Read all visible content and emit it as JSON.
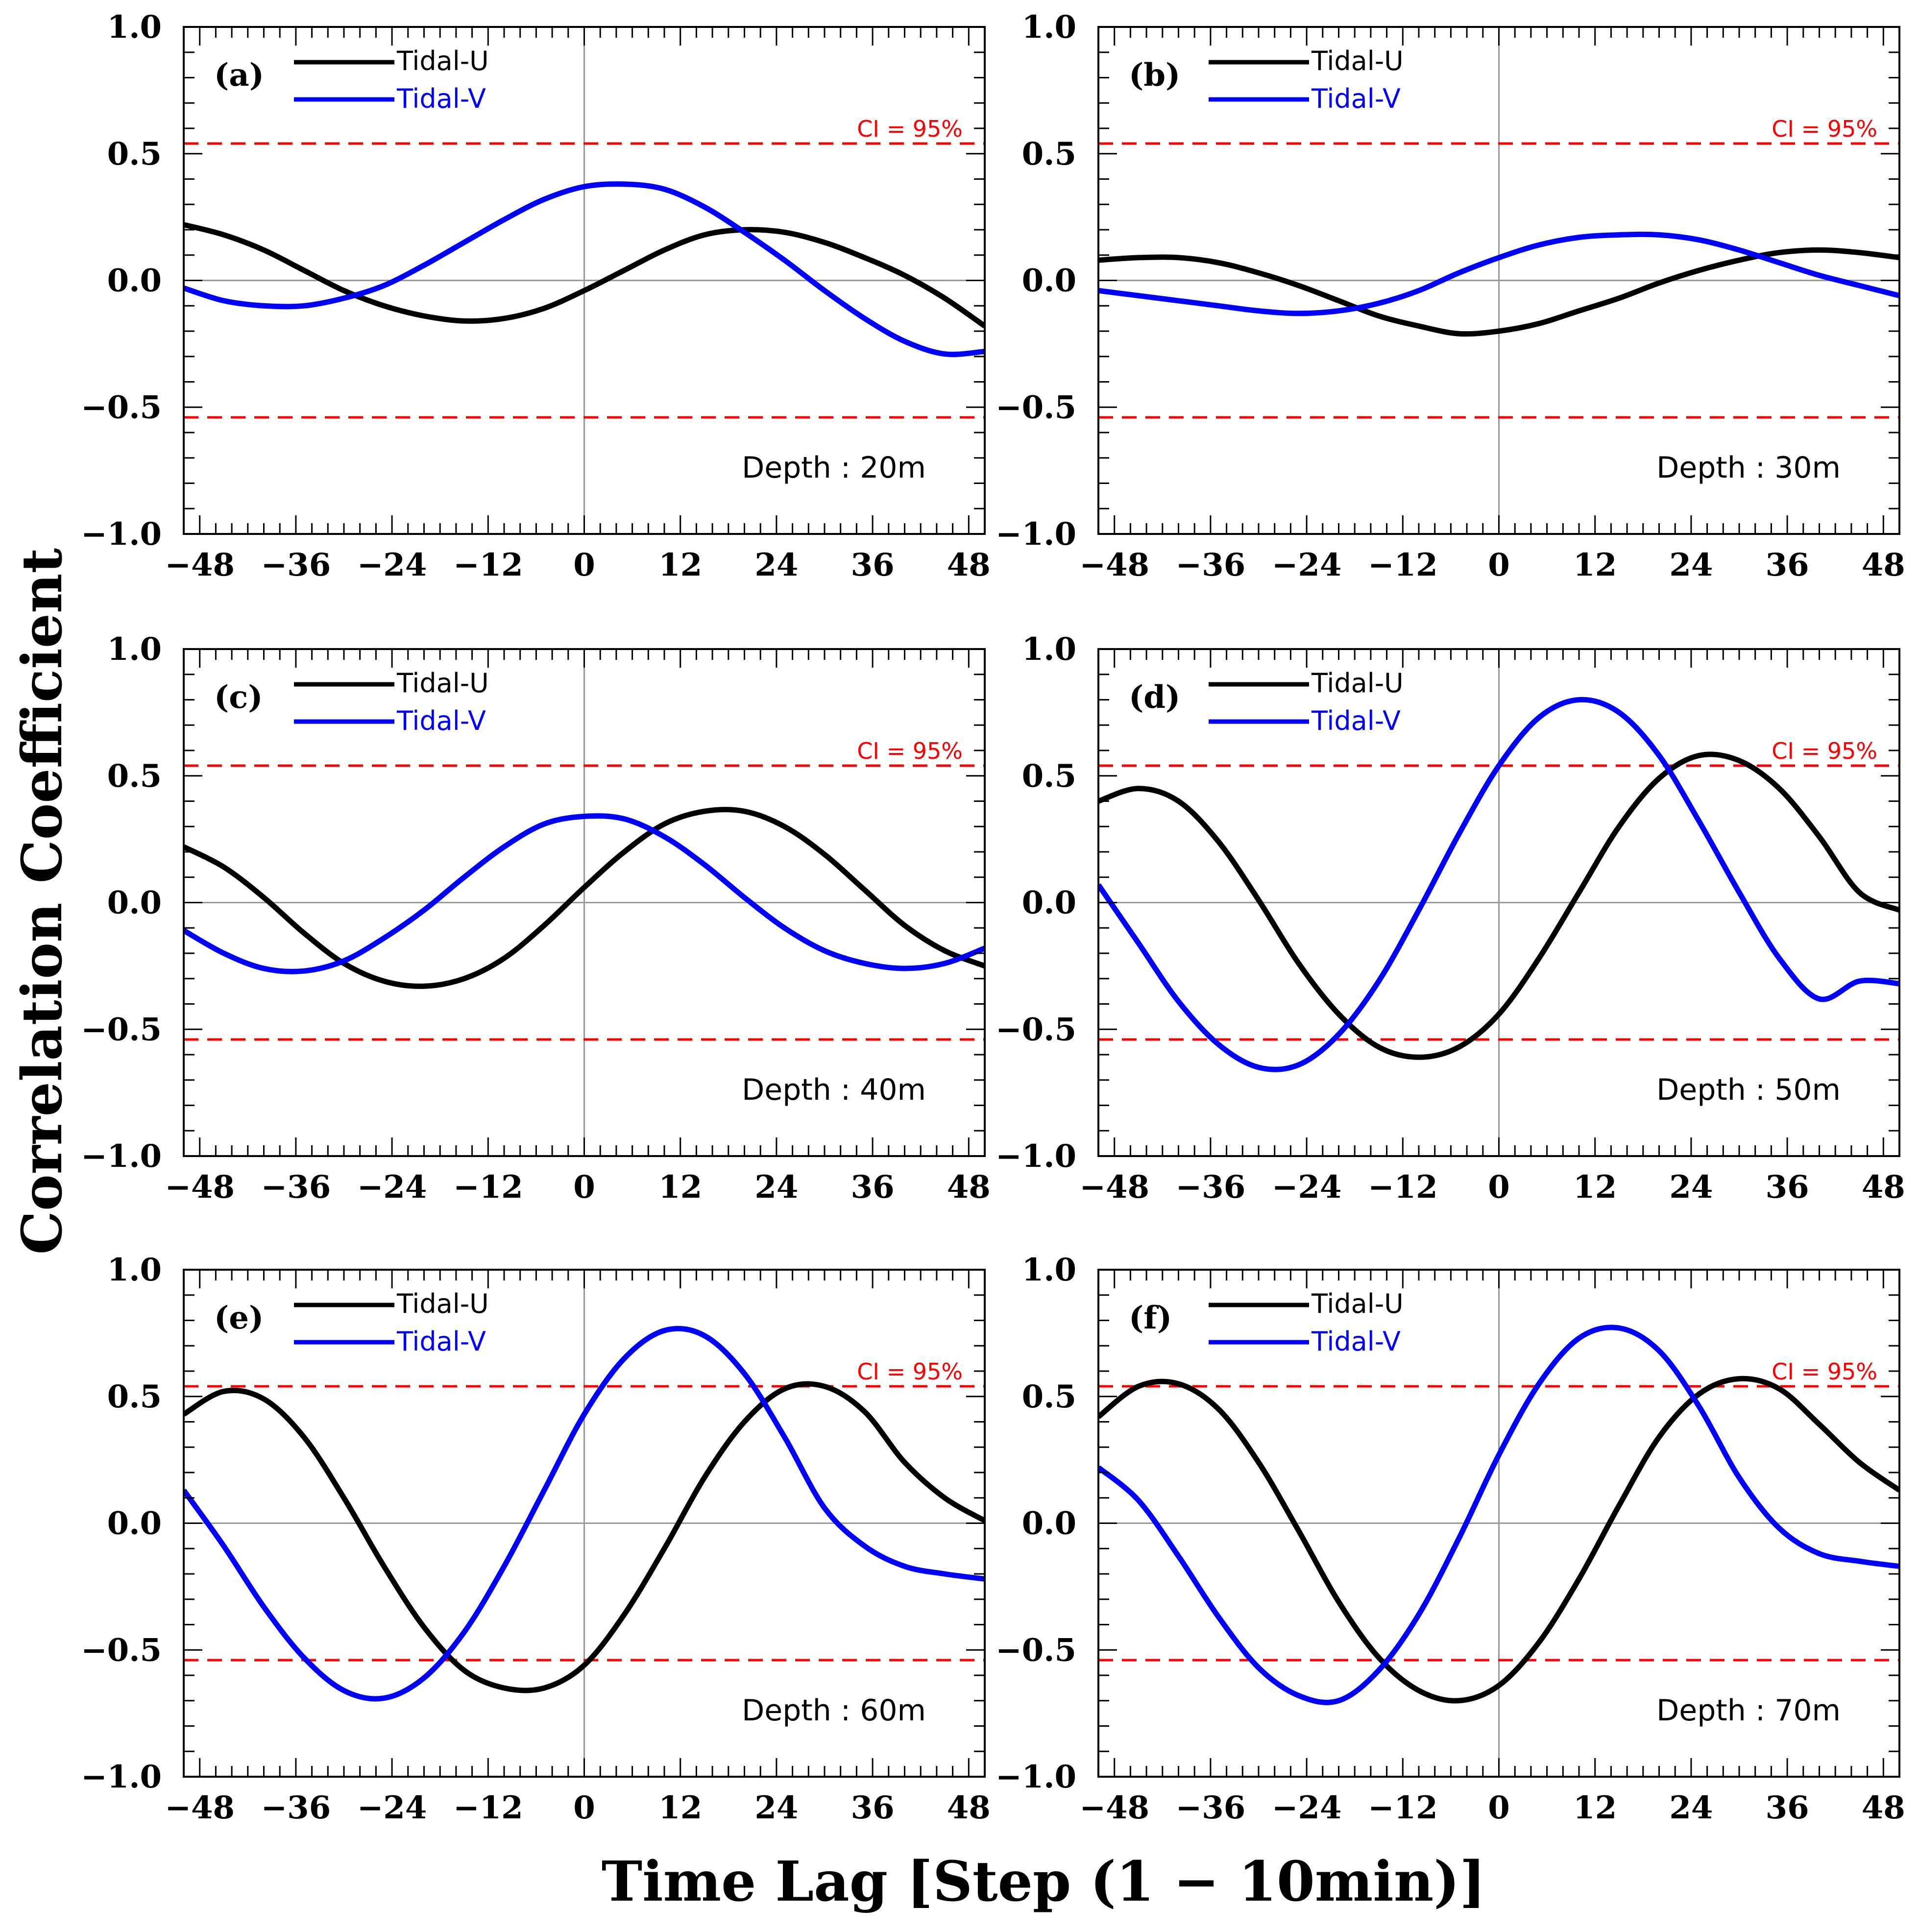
{
  "figure": {
    "ylabel": "Correlation Coefficient",
    "xlabel": "Time Lag [Step (1 − 10min)]",
    "colors": {
      "u": "#000000",
      "v": "#0000ff",
      "ci": "#ff0000",
      "zero": "#999999"
    }
  },
  "chart_data": [
    {
      "type": "line",
      "panel": "(a)",
      "depth_label": "Depth : 20m",
      "xlim": [
        -50,
        50
      ],
      "ylim": [
        -1.0,
        1.0
      ],
      "xticks": [
        -48,
        -36,
        -24,
        -12,
        0,
        12,
        24,
        36,
        48
      ],
      "xtick_labels": [
        "−48",
        "−36",
        "−24",
        "−12",
        "0",
        "12",
        "24",
        "36",
        "48"
      ],
      "yticks": [
        1.0,
        0.5,
        0.0,
        -0.5,
        -1.0
      ],
      "ytick_labels": [
        "1.0",
        "0.5",
        "0.0",
        "−0.5",
        "−1.0"
      ],
      "ci": {
        "label": "CI = 95%",
        "upper": 0.54,
        "lower": -0.54
      },
      "legend": {
        "location": "top-left",
        "entries": [
          "Tidal-U",
          "Tidal-V"
        ]
      },
      "x": [
        -50,
        -45,
        -40,
        -35,
        -30,
        -25,
        -20,
        -15,
        -10,
        -5,
        0,
        5,
        10,
        15,
        20,
        25,
        30,
        35,
        40,
        45,
        50
      ],
      "series": [
        {
          "name": "Tidal-U",
          "values": [
            0.22,
            0.18,
            0.12,
            0.04,
            -0.04,
            -0.1,
            -0.14,
            -0.16,
            -0.15,
            -0.11,
            -0.04,
            0.04,
            0.12,
            0.18,
            0.2,
            0.19,
            0.15,
            0.09,
            0.02,
            -0.07,
            -0.18
          ]
        },
        {
          "name": "Tidal-V",
          "values": [
            -0.03,
            -0.08,
            -0.1,
            -0.1,
            -0.07,
            -0.02,
            0.06,
            0.15,
            0.24,
            0.32,
            0.37,
            0.38,
            0.36,
            0.29,
            0.19,
            0.08,
            -0.04,
            -0.15,
            -0.24,
            -0.29,
            -0.28
          ]
        }
      ]
    },
    {
      "type": "line",
      "panel": "(b)",
      "depth_label": "Depth : 30m",
      "xlim": [
        -50,
        50
      ],
      "ylim": [
        -1.0,
        1.0
      ],
      "xticks": [
        -48,
        -36,
        -24,
        -12,
        0,
        12,
        24,
        36,
        48
      ],
      "xtick_labels": [
        "−48",
        "−36",
        "−24",
        "−12",
        "0",
        "12",
        "24",
        "36",
        "48"
      ],
      "yticks": [
        1.0,
        0.5,
        0.0,
        -0.5,
        -1.0
      ],
      "ytick_labels": [
        "1.0",
        "0.5",
        "0.0",
        "−0.5",
        "−1.0"
      ],
      "ci": {
        "label": "CI = 95%",
        "upper": 0.54,
        "lower": -0.54
      },
      "legend": {
        "location": "top-left",
        "entries": [
          "Tidal-U",
          "Tidal-V"
        ]
      },
      "x": [
        -50,
        -45,
        -40,
        -35,
        -30,
        -25,
        -20,
        -15,
        -10,
        -5,
        0,
        5,
        10,
        15,
        20,
        25,
        30,
        35,
        40,
        45,
        50
      ],
      "series": [
        {
          "name": "Tidal-U",
          "values": [
            0.08,
            0.09,
            0.09,
            0.07,
            0.03,
            -0.02,
            -0.08,
            -0.14,
            -0.18,
            -0.21,
            -0.2,
            -0.17,
            -0.12,
            -0.07,
            -0.01,
            0.04,
            0.08,
            0.11,
            0.12,
            0.11,
            0.09
          ]
        },
        {
          "name": "Tidal-V",
          "values": [
            -0.04,
            -0.06,
            -0.08,
            -0.1,
            -0.12,
            -0.13,
            -0.12,
            -0.09,
            -0.04,
            0.03,
            0.09,
            0.14,
            0.17,
            0.18,
            0.18,
            0.16,
            0.12,
            0.07,
            0.02,
            -0.02,
            -0.06
          ]
        }
      ]
    },
    {
      "type": "line",
      "panel": "(c)",
      "depth_label": "Depth : 40m",
      "xlim": [
        -50,
        50
      ],
      "ylim": [
        -1.0,
        1.0
      ],
      "xticks": [
        -48,
        -36,
        -24,
        -12,
        0,
        12,
        24,
        36,
        48
      ],
      "xtick_labels": [
        "−48",
        "−36",
        "−24",
        "−12",
        "0",
        "12",
        "24",
        "36",
        "48"
      ],
      "yticks": [
        1.0,
        0.5,
        0.0,
        -0.5,
        -1.0
      ],
      "ytick_labels": [
        "1.0",
        "0.5",
        "0.0",
        "−0.5",
        "−1.0"
      ],
      "ci": {
        "label": "CI = 95%",
        "upper": 0.54,
        "lower": -0.54
      },
      "legend": {
        "location": "top-left",
        "entries": [
          "Tidal-U",
          "Tidal-V"
        ]
      },
      "x": [
        -50,
        -45,
        -40,
        -35,
        -30,
        -25,
        -20,
        -15,
        -10,
        -5,
        0,
        5,
        10,
        15,
        20,
        25,
        30,
        35,
        40,
        45,
        50
      ],
      "series": [
        {
          "name": "Tidal-U",
          "values": [
            0.22,
            0.14,
            0.02,
            -0.12,
            -0.24,
            -0.31,
            -0.33,
            -0.3,
            -0.22,
            -0.09,
            0.06,
            0.2,
            0.31,
            0.36,
            0.36,
            0.3,
            0.19,
            0.05,
            -0.09,
            -0.19,
            -0.25
          ]
        },
        {
          "name": "Tidal-V",
          "values": [
            -0.11,
            -0.2,
            -0.26,
            -0.27,
            -0.23,
            -0.14,
            -0.03,
            0.1,
            0.22,
            0.31,
            0.34,
            0.33,
            0.26,
            0.15,
            0.02,
            -0.1,
            -0.19,
            -0.24,
            -0.26,
            -0.24,
            -0.18
          ]
        }
      ]
    },
    {
      "type": "line",
      "panel": "(d)",
      "depth_label": "Depth : 50m",
      "xlim": [
        -50,
        50
      ],
      "ylim": [
        -1.0,
        1.0
      ],
      "xticks": [
        -48,
        -36,
        -24,
        -12,
        0,
        12,
        24,
        36,
        48
      ],
      "xtick_labels": [
        "−48",
        "−36",
        "−24",
        "−12",
        "0",
        "12",
        "24",
        "36",
        "48"
      ],
      "yticks": [
        1.0,
        0.5,
        0.0,
        -0.5,
        -1.0
      ],
      "ytick_labels": [
        "1.0",
        "0.5",
        "0.0",
        "−0.5",
        "−1.0"
      ],
      "ci": {
        "label": "CI = 95%",
        "upper": 0.54,
        "lower": -0.54
      },
      "legend": {
        "location": "top-left",
        "entries": [
          "Tidal-U",
          "Tidal-V"
        ]
      },
      "x": [
        -50,
        -45,
        -40,
        -35,
        -30,
        -25,
        -20,
        -15,
        -10,
        -5,
        0,
        5,
        10,
        15,
        20,
        25,
        30,
        35,
        40,
        45,
        50
      ],
      "series": [
        {
          "name": "Tidal-U",
          "values": [
            0.4,
            0.45,
            0.4,
            0.24,
            0.01,
            -0.24,
            -0.44,
            -0.57,
            -0.61,
            -0.57,
            -0.44,
            -0.22,
            0.04,
            0.3,
            0.49,
            0.58,
            0.56,
            0.45,
            0.26,
            0.04,
            -0.03
          ]
        },
        {
          "name": "Tidal-V",
          "values": [
            0.07,
            -0.16,
            -0.39,
            -0.56,
            -0.65,
            -0.64,
            -0.52,
            -0.31,
            -0.03,
            0.27,
            0.54,
            0.73,
            0.8,
            0.75,
            0.58,
            0.32,
            0.04,
            -0.22,
            -0.38,
            -0.31,
            -0.32
          ]
        }
      ]
    },
    {
      "type": "line",
      "panel": "(e)",
      "depth_label": "Depth : 60m",
      "xlim": [
        -50,
        50
      ],
      "ylim": [
        -1.0,
        1.0
      ],
      "xticks": [
        -48,
        -36,
        -24,
        -12,
        0,
        12,
        24,
        36,
        48
      ],
      "xtick_labels": [
        "−48",
        "−36",
        "−24",
        "−12",
        "0",
        "12",
        "24",
        "36",
        "48"
      ],
      "yticks": [
        1.0,
        0.5,
        0.0,
        -0.5,
        -1.0
      ],
      "ytick_labels": [
        "1.0",
        "0.5",
        "0.0",
        "−0.5",
        "−1.0"
      ],
      "ci": {
        "label": "CI = 95%",
        "upper": 0.54,
        "lower": -0.54
      },
      "legend": {
        "location": "top-left",
        "entries": [
          "Tidal-U",
          "Tidal-V"
        ]
      },
      "x": [
        -50,
        -45,
        -40,
        -35,
        -30,
        -25,
        -20,
        -15,
        -10,
        -5,
        0,
        5,
        10,
        15,
        20,
        25,
        30,
        35,
        40,
        45,
        50
      ],
      "series": [
        {
          "name": "Tidal-U",
          "values": [
            0.43,
            0.52,
            0.49,
            0.34,
            0.1,
            -0.17,
            -0.41,
            -0.58,
            -0.65,
            -0.65,
            -0.56,
            -0.36,
            -0.1,
            0.18,
            0.4,
            0.53,
            0.54,
            0.44,
            0.24,
            0.1,
            0.01
          ]
        },
        {
          "name": "Tidal-V",
          "values": [
            0.13,
            -0.09,
            -0.33,
            -0.53,
            -0.66,
            -0.69,
            -0.61,
            -0.43,
            -0.17,
            0.13,
            0.43,
            0.65,
            0.76,
            0.74,
            0.59,
            0.34,
            0.06,
            -0.09,
            -0.17,
            -0.2,
            -0.22
          ]
        }
      ]
    },
    {
      "type": "line",
      "panel": "(f)",
      "depth_label": "Depth : 70m",
      "xlim": [
        -50,
        50
      ],
      "ylim": [
        -1.0,
        1.0
      ],
      "xticks": [
        -48,
        -36,
        -24,
        -12,
        0,
        12,
        24,
        36,
        48
      ],
      "xtick_labels": [
        "−48",
        "−36",
        "−24",
        "−12",
        "0",
        "12",
        "24",
        "36",
        "48"
      ],
      "yticks": [
        1.0,
        0.5,
        0.0,
        -0.5,
        -1.0
      ],
      "ytick_labels": [
        "1.0",
        "0.5",
        "0.0",
        "−0.5",
        "−1.0"
      ],
      "ci": {
        "label": "CI = 95%",
        "upper": 0.54,
        "lower": -0.54
      },
      "legend": {
        "location": "top-left",
        "entries": [
          "Tidal-U",
          "Tidal-V"
        ]
      },
      "x": [
        -50,
        -45,
        -40,
        -35,
        -30,
        -25,
        -20,
        -15,
        -10,
        -5,
        0,
        5,
        10,
        15,
        20,
        25,
        30,
        35,
        40,
        45,
        50
      ],
      "series": [
        {
          "name": "Tidal-U",
          "values": [
            0.42,
            0.54,
            0.55,
            0.45,
            0.24,
            -0.03,
            -0.31,
            -0.53,
            -0.66,
            -0.7,
            -0.64,
            -0.47,
            -0.22,
            0.07,
            0.34,
            0.51,
            0.57,
            0.53,
            0.39,
            0.24,
            0.13
          ]
        },
        {
          "name": "Tidal-V",
          "values": [
            0.22,
            0.09,
            -0.13,
            -0.37,
            -0.57,
            -0.68,
            -0.7,
            -0.58,
            -0.36,
            -0.06,
            0.27,
            0.55,
            0.73,
            0.77,
            0.68,
            0.46,
            0.18,
            -0.02,
            -0.12,
            -0.15,
            -0.17
          ]
        }
      ]
    }
  ]
}
